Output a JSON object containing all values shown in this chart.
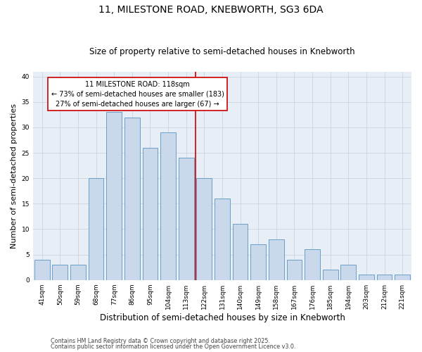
{
  "title": "11, MILESTONE ROAD, KNEBWORTH, SG3 6DA",
  "subtitle": "Size of property relative to semi-detached houses in Knebworth",
  "xlabel": "Distribution of semi-detached houses by size in Knebworth",
  "ylabel": "Number of semi-detached properties",
  "categories": [
    "41sqm",
    "50sqm",
    "59sqm",
    "68sqm",
    "77sqm",
    "86sqm",
    "95sqm",
    "104sqm",
    "113sqm",
    "122sqm",
    "131sqm",
    "140sqm",
    "149sqm",
    "158sqm",
    "167sqm",
    "176sqm",
    "185sqm",
    "194sqm",
    "203sqm",
    "212sqm",
    "221sqm"
  ],
  "values": [
    4,
    3,
    3,
    20,
    33,
    32,
    26,
    29,
    24,
    20,
    16,
    11,
    7,
    8,
    4,
    6,
    2,
    3,
    1,
    1,
    1
  ],
  "bar_color": "#c9d9eb",
  "bar_edge_color": "#6a9fc8",
  "vline_x_index": 8.5,
  "annotation_text_line1": "11 MILESTONE ROAD: 118sqm",
  "annotation_text_line2": "← 73% of semi-detached houses are smaller (183)",
  "annotation_text_line3": "27% of semi-detached houses are larger (67) →",
  "annotation_box_color": "#ffffff",
  "annotation_box_edge": "#cc0000",
  "vline_color": "#cc0000",
  "ylim": [
    0,
    41
  ],
  "yticks": [
    0,
    5,
    10,
    15,
    20,
    25,
    30,
    35,
    40
  ],
  "grid_color": "#c8d4e0",
  "bg_color": "#e8eef5",
  "footer1": "Contains HM Land Registry data © Crown copyright and database right 2025.",
  "footer2": "Contains public sector information licensed under the Open Government Licence v3.0.",
  "title_fontsize": 10,
  "subtitle_fontsize": 8.5,
  "xlabel_fontsize": 8.5,
  "ylabel_fontsize": 8,
  "tick_fontsize": 6.5,
  "annotation_fontsize": 7,
  "footer_fontsize": 5.8
}
